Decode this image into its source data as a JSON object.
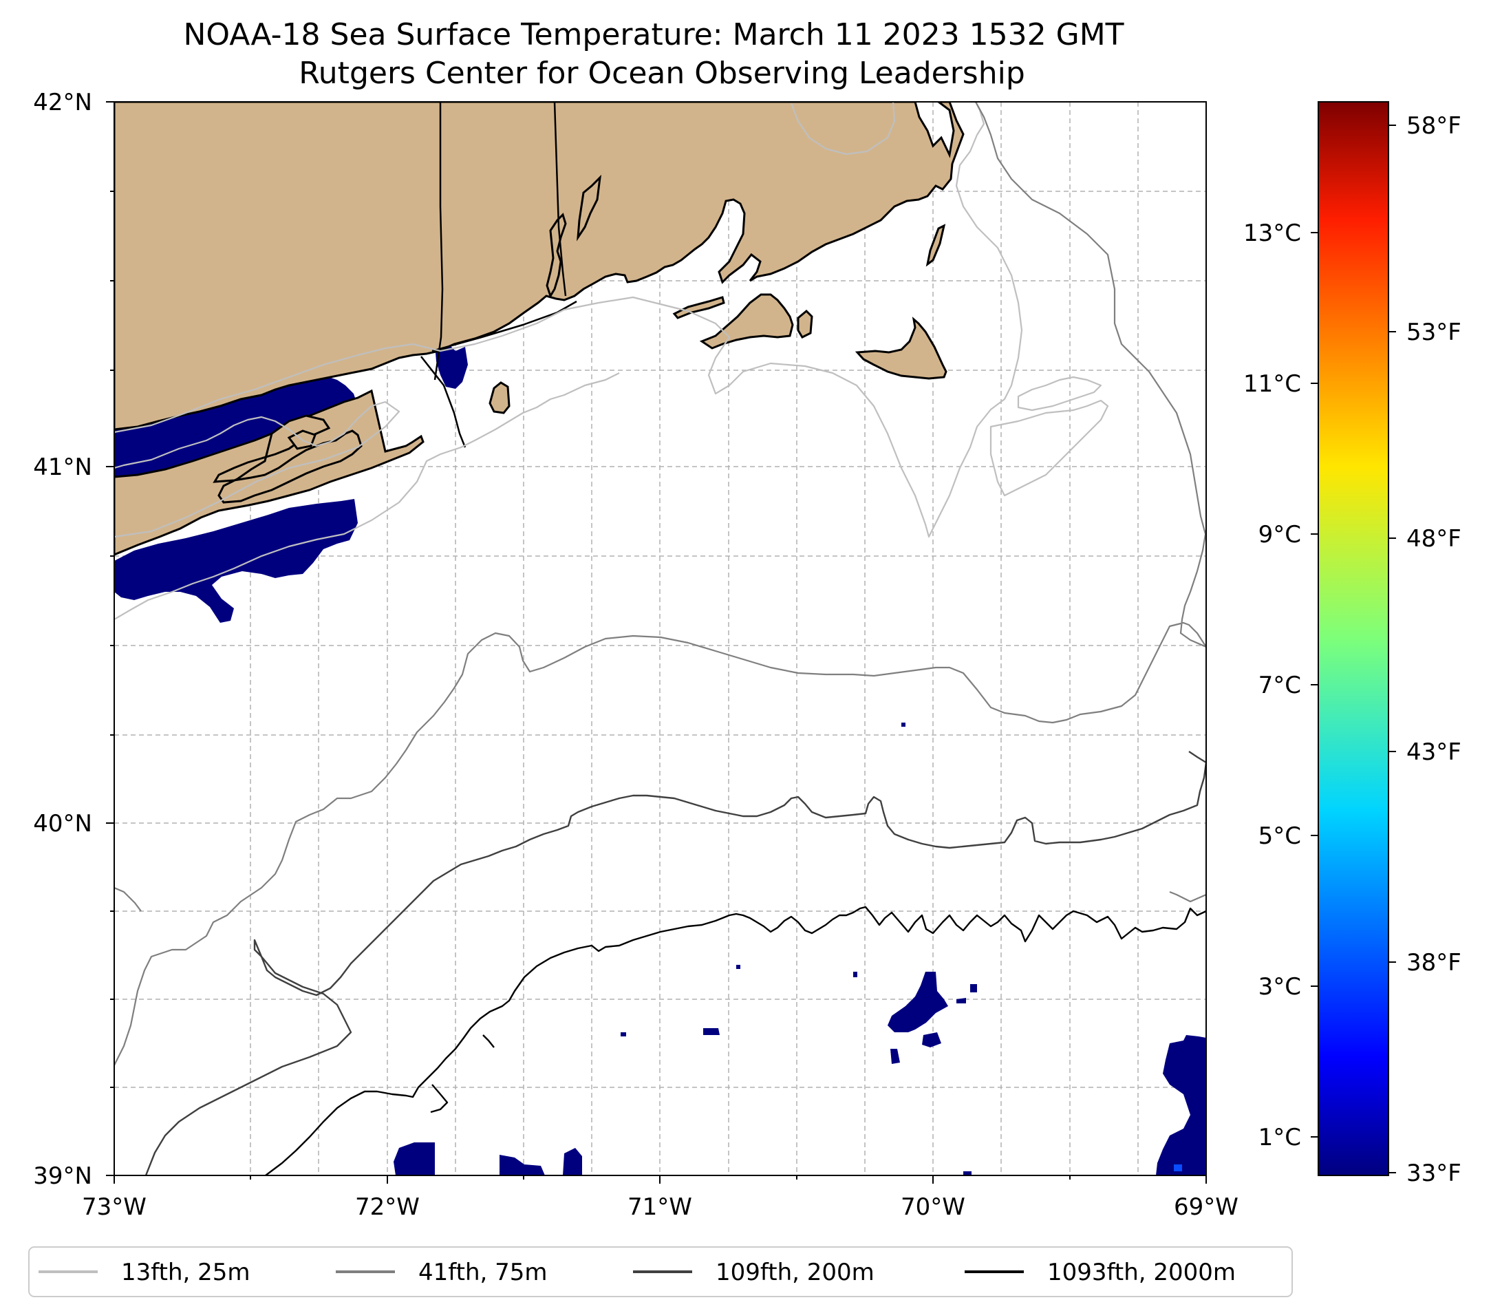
{
  "title": {
    "line1": "NOAA-18 Sea Surface Temperature: March 11 2023 1532 GMT",
    "line2": "Rutgers Center for Ocean Observing Leadership"
  },
  "map": {
    "lon_range": [
      -73,
      -69
    ],
    "lat_range": [
      39,
      42
    ],
    "lon_ticks": [
      "73°W",
      "72°W",
      "71°W",
      "70°W",
      "69°W"
    ],
    "lat_ticks": [
      "42°N",
      "41°N",
      "40°N",
      "39°N"
    ],
    "land_color": "#d2b48c",
    "sst_cold_color": "#00007f"
  },
  "colorbar": {
    "celsius_labels": [
      "13°C",
      "11°C",
      "9°C",
      "7°C",
      "5°C",
      "3°C",
      "1°C"
    ],
    "fahrenheit_labels": [
      "58°F",
      "53°F",
      "48°F",
      "43°F",
      "38°F",
      "33°F"
    ],
    "colormap": "jet",
    "range_f": [
      32.5,
      58.5
    ]
  },
  "legend": {
    "items": [
      {
        "label": "13fth, 25m",
        "color": "#bfbfbf"
      },
      {
        "label": "41fth, 75m",
        "color": "#7f7f7f"
      },
      {
        "label": "109fth, 200m",
        "color": "#404040"
      },
      {
        "label": "1093fth, 2000m",
        "color": "#000000"
      }
    ]
  }
}
